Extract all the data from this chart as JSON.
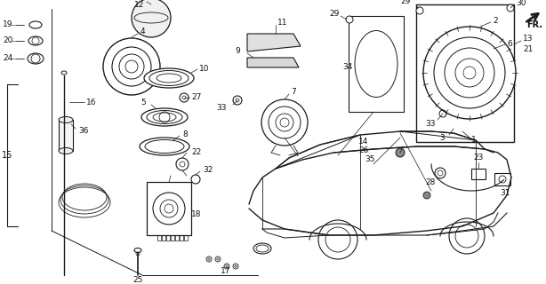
{
  "bg_color": "#ffffff",
  "line_color": "#1a1a1a",
  "text_color": "#111111",
  "fig_w": 6.14,
  "fig_h": 3.2,
  "dpi": 100
}
